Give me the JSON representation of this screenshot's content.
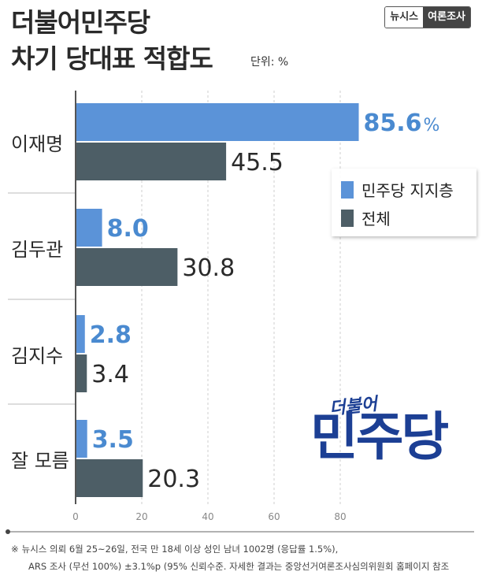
{
  "header": {
    "title_line1": "더불어민주당",
    "title_line2": "차기 당대표 적합도",
    "unit": "단위: %",
    "source_a": "뉴시스",
    "source_b": "여론조사"
  },
  "chart_data": {
    "type": "bar",
    "orientation": "horizontal",
    "categories": [
      "이재명",
      "김두관",
      "김지수",
      "잘 모름"
    ],
    "series": [
      {
        "name": "민주당 지지층",
        "values": [
          85.6,
          8.0,
          2.8,
          3.5
        ],
        "labels": [
          "85.6",
          "8.0",
          "2.8",
          "3.5"
        ],
        "color": "#5b93d8"
      },
      {
        "name": "전체",
        "values": [
          45.5,
          30.8,
          3.4,
          20.3
        ],
        "labels": [
          "45.5",
          "30.8",
          "3.4",
          "20.3"
        ],
        "color": "#4d5e66"
      }
    ],
    "percent_suffix": "%",
    "xlim": [
      0,
      90
    ],
    "xticks": [
      0,
      20,
      40,
      60,
      80
    ],
    "legend": "right"
  },
  "logo": {
    "top": "더불어",
    "main": "민주당"
  },
  "footnote": {
    "mark": "※",
    "line1": "뉴시스 의뢰 6월 25~26일, 전국 만 18세 이상 성인 남녀 1002명 (응답률 1.5%),",
    "line2": "ARS 조사 (무선 100%) ±3.1%p (95% 신뢰수준. 자세한 결과는 중앙선거여론조사심의위원회 홈페이지 참조"
  }
}
